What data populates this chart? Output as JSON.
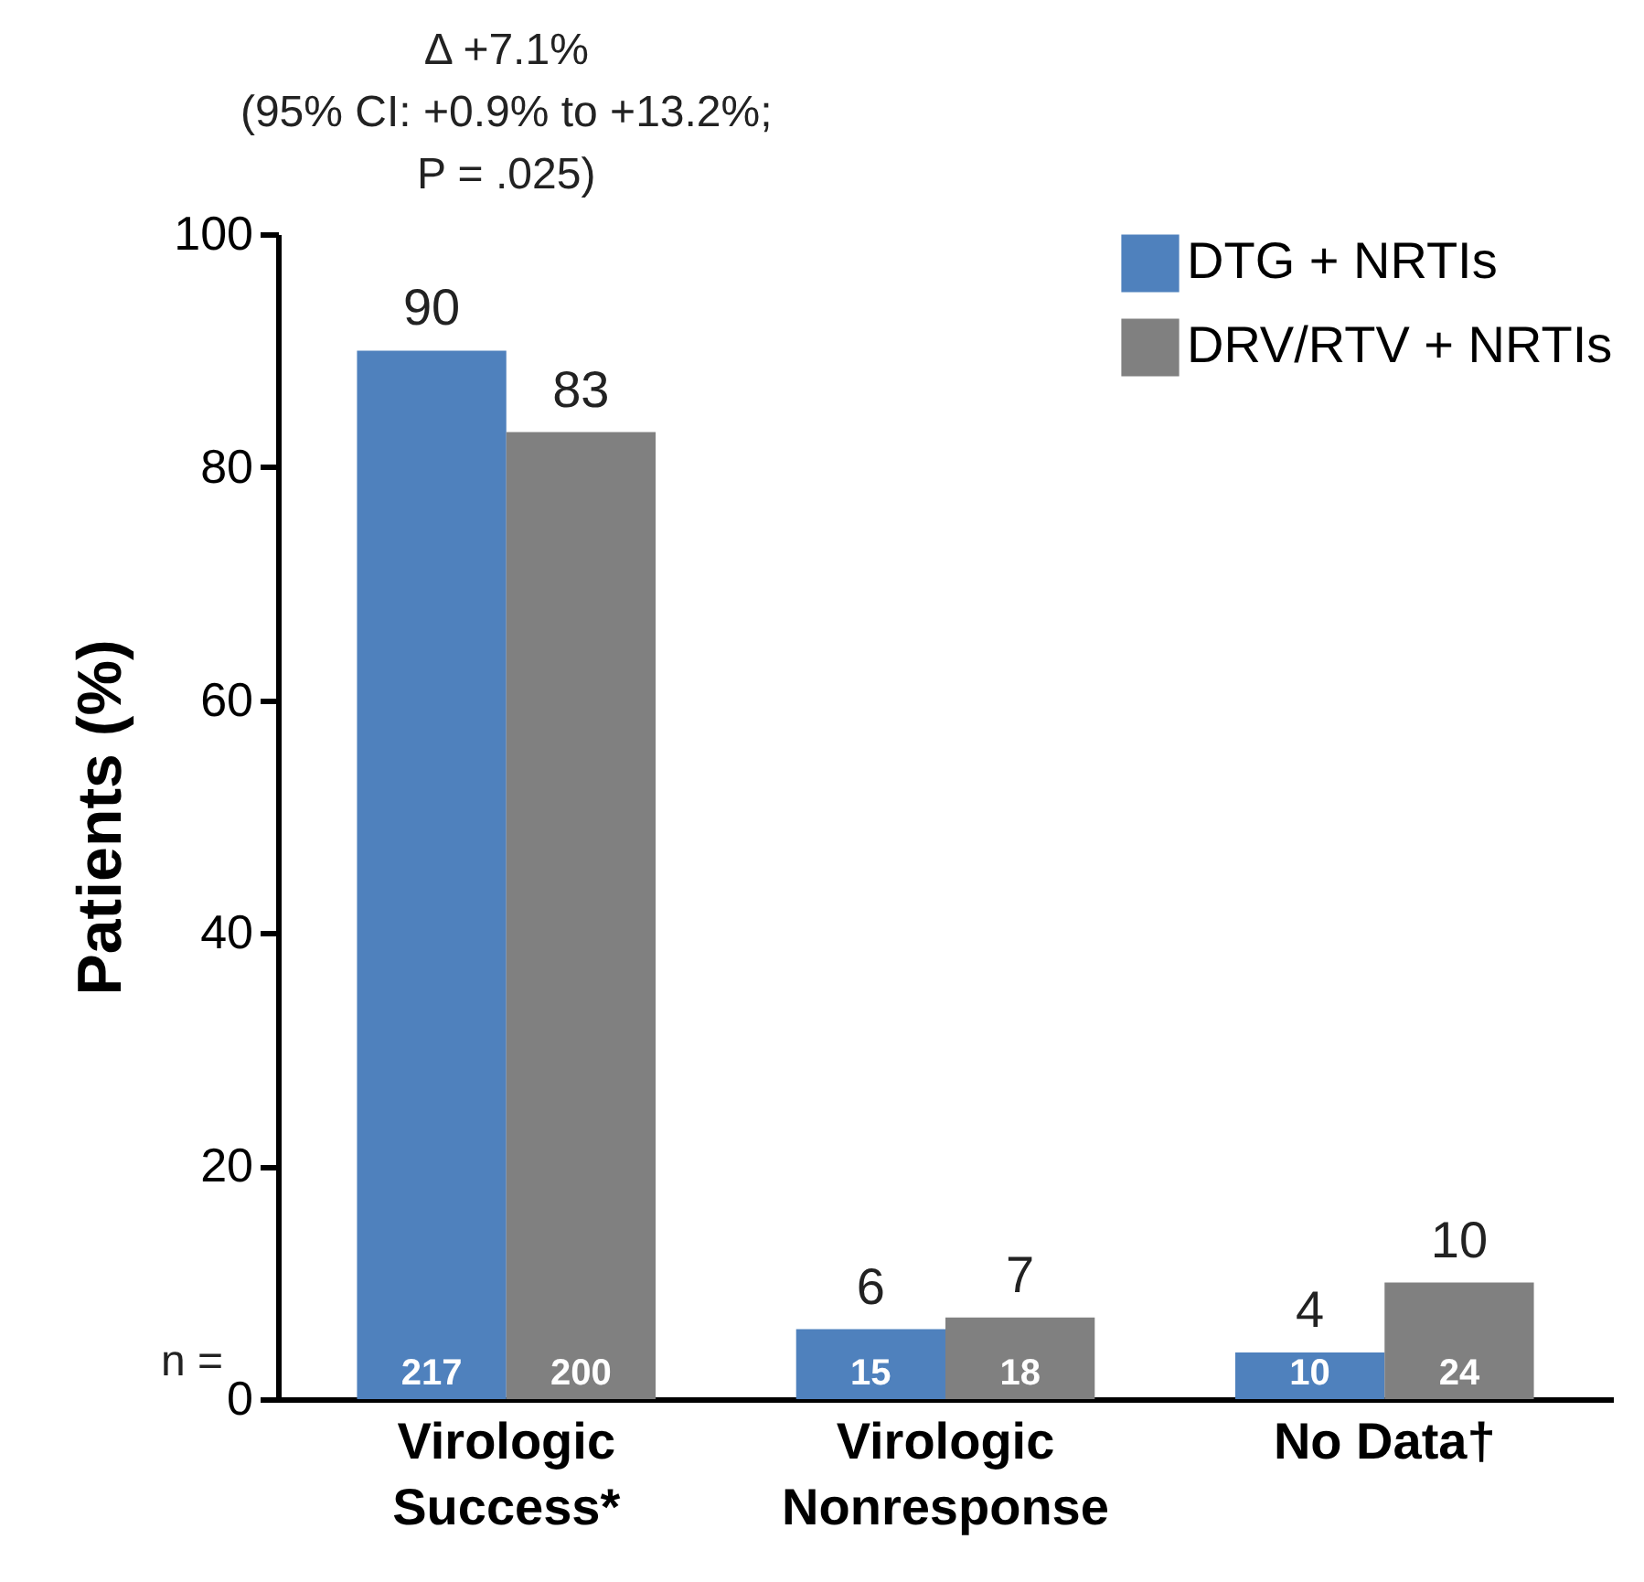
{
  "chart_data": {
    "type": "bar",
    "ylabel": "Patients (%)",
    "categories": [
      "Virologic\nSuccess*",
      "Virologic\nNonresponse",
      "No Data†"
    ],
    "series": [
      {
        "name": "DTG + NRTIs",
        "color": "#4f81bd",
        "values": [
          90,
          6,
          4
        ]
      },
      {
        "name": "DRV/RTV + NRTIs",
        "color": "#808080",
        "values": [
          83,
          7,
          10
        ]
      }
    ],
    "ylim": [
      0,
      100
    ],
    "yticks": [
      0,
      20,
      40,
      60,
      80,
      100
    ],
    "grid": false,
    "legend": "top right",
    "data_labels": true,
    "annotations": [
      "Δ +7.1%\n(95% CI: +0.9% to +13.2%;\nP = .025)",
      "n =",
      {
        "text": "217",
        "x": "Virologic\nSuccess*"
      },
      {
        "text": "200",
        "x": "Virologic\nSuccess*"
      },
      {
        "text": "15",
        "x": "Virologic\nNonresponse"
      },
      {
        "text": "18",
        "x": "Virologic\nNonresponse"
      },
      {
        "text": "10",
        "x": "No Data†"
      },
      {
        "text": "24",
        "x": "No Data†"
      }
    ]
  }
}
